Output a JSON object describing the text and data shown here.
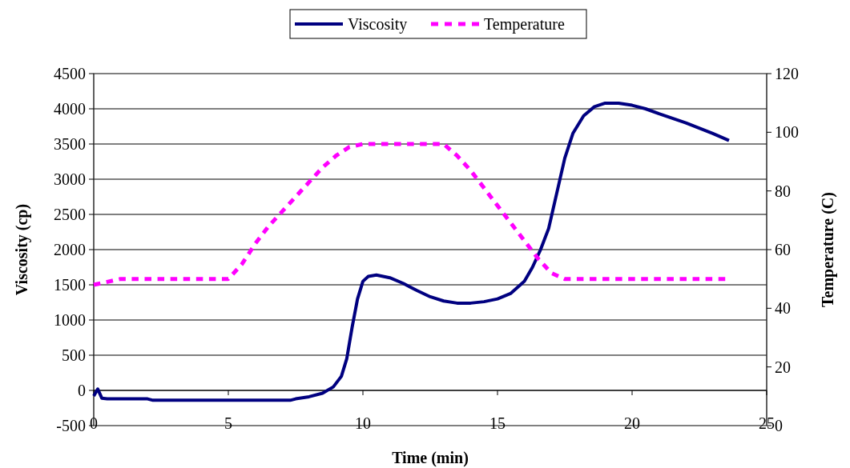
{
  "chart_data": {
    "type": "line",
    "xlabel": "Time (min)",
    "ylabel": "Viscosity (cp)",
    "y2label": "Temperature (C)",
    "xlim": [
      0,
      25
    ],
    "xticks": [
      0,
      5,
      10,
      15,
      20,
      25
    ],
    "ylim": [
      -500,
      4500
    ],
    "yticks": [
      -500,
      0,
      500,
      1000,
      1500,
      2000,
      2500,
      3000,
      3500,
      4000,
      4500
    ],
    "y2lim": [
      0,
      120
    ],
    "y2ticks": [
      0,
      20,
      40,
      60,
      80,
      100,
      120
    ],
    "grid": "y",
    "legend": "top",
    "series": [
      {
        "name": "Viscosity",
        "color": "#000080",
        "line_style": "solid",
        "x": [
          0,
          0.15,
          0.3,
          0.5,
          1,
          2,
          2.2,
          5,
          7.3,
          7.5,
          8,
          8.5,
          8.9,
          9.2,
          9.4,
          9.6,
          9.8,
          10,
          10.2,
          10.5,
          11,
          11.5,
          12,
          12.5,
          13,
          13.5,
          14,
          14.5,
          15,
          15.5,
          16,
          16.3,
          16.6,
          16.9,
          17.2,
          17.5,
          17.8,
          18.2,
          18.6,
          19,
          19.5,
          20,
          20.5,
          21,
          22,
          23,
          23.6
        ],
        "values": [
          -80,
          20,
          -110,
          -120,
          -120,
          -120,
          -140,
          -140,
          -140,
          -120,
          -90,
          -40,
          50,
          200,
          450,
          900,
          1300,
          1550,
          1620,
          1640,
          1600,
          1520,
          1420,
          1330,
          1270,
          1240,
          1240,
          1260,
          1300,
          1380,
          1550,
          1750,
          2000,
          2300,
          2800,
          3300,
          3650,
          3900,
          4030,
          4080,
          4080,
          4050,
          4000,
          3930,
          3800,
          3650,
          3550
        ]
      },
      {
        "name": "Temperature",
        "color": "#ff00ff",
        "line_style": "dashed",
        "axis": "y2",
        "x": [
          0,
          1,
          2,
          3,
          4,
          5,
          5.5,
          6,
          6.5,
          7,
          7.5,
          8,
          8.5,
          9,
          9.5,
          10,
          11,
          12,
          13,
          13.5,
          14,
          14.5,
          15,
          15.5,
          16,
          16.5,
          17,
          17.5,
          18,
          19,
          20,
          21,
          22,
          23,
          23.6
        ],
        "values": [
          48,
          50,
          50,
          50,
          50,
          50,
          55,
          62,
          68,
          73,
          78,
          83,
          88,
          92,
          95,
          96,
          96,
          96,
          96,
          92,
          87,
          81,
          75,
          69,
          63,
          57,
          52,
          50,
          50,
          50,
          50,
          50,
          50,
          50,
          50
        ]
      }
    ]
  }
}
